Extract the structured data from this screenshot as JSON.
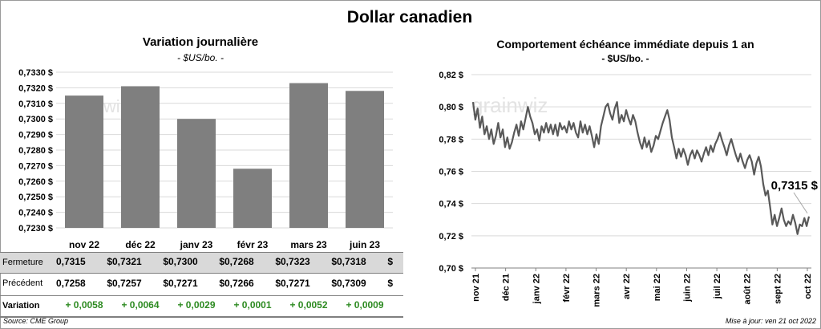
{
  "title": "Dollar canadien",
  "left": {
    "title": "Variation  journalière",
    "unit": "- $US/bo. -"
  },
  "right": {
    "title": "Comportement échéance immédiate depuis 1 an",
    "unit": "- $US/bo. -",
    "annotation": "0,7315 $"
  },
  "watermark": "grainwiz",
  "table": {
    "labels": {
      "fermeture": "Fermeture",
      "precedent": "Précédent",
      "variation": "Variation"
    },
    "fermeture": [
      "0,7315",
      "0,7321",
      "0,7300",
      "0,7268",
      "0,7323",
      "0,7318"
    ],
    "precedent": [
      "0,7258",
      "0,7257",
      "0,7271",
      "0,7266",
      "0,7271",
      "0,7309"
    ],
    "variation": [
      "+ 0,0058",
      "+ 0,0064",
      "+ 0,0029",
      "+ 0,0001",
      "+ 0,0052",
      "+ 0,0009"
    ],
    "currency": "$"
  },
  "footer": {
    "source": "Source: CME Group",
    "updated": "Mise à jour: ven 21 oct 2022"
  },
  "colors": {
    "bar": "#7f7f7f",
    "line": "#595959",
    "green": "#2e8b22",
    "grid": "#d9d9d9"
  },
  "chart_data": [
    {
      "type": "bar",
      "categories": [
        "nov 22",
        "déc 22",
        "janv 23",
        "févr 23",
        "mars 23",
        "juin 23"
      ],
      "values": [
        0.7315,
        0.7321,
        0.73,
        0.7268,
        0.7323,
        0.7318
      ],
      "ylim": [
        0.723,
        0.733
      ],
      "yticks": [
        "0,7230 $",
        "0,7240 $",
        "0,7250 $",
        "0,7260 $",
        "0,7270 $",
        "0,7280 $",
        "0,7290 $",
        "0,7300 $",
        "0,7310 $",
        "0,7320 $",
        "0,7330 $"
      ],
      "grid": true,
      "legend": "none"
    },
    {
      "type": "line",
      "ylim": [
        0.7,
        0.82
      ],
      "yticks": [
        "0,70 $",
        "0,72 $",
        "0,74 $",
        "0,76 $",
        "0,78 $",
        "0,80 $",
        "0,82 $"
      ],
      "xticks": [
        "nov 21",
        "déc 21",
        "janv 22",
        "févr 22",
        "mars 22",
        "avr 22",
        "mai 22",
        "juin 22",
        "juil 22",
        "août 22",
        "sept 22",
        "oct 22"
      ],
      "grid": true,
      "legend": "none",
      "values": [
        0.803,
        0.792,
        0.799,
        0.787,
        0.794,
        0.783,
        0.788,
        0.78,
        0.786,
        0.777,
        0.782,
        0.79,
        0.781,
        0.786,
        0.775,
        0.781,
        0.774,
        0.778,
        0.784,
        0.789,
        0.782,
        0.791,
        0.786,
        0.793,
        0.8,
        0.794,
        0.79,
        0.783,
        0.786,
        0.779,
        0.788,
        0.784,
        0.79,
        0.784,
        0.789,
        0.783,
        0.789,
        0.782,
        0.79,
        0.786,
        0.788,
        0.784,
        0.791,
        0.786,
        0.79,
        0.784,
        0.781,
        0.791,
        0.784,
        0.789,
        0.783,
        0.788,
        0.782,
        0.775,
        0.783,
        0.777,
        0.788,
        0.794,
        0.8,
        0.802,
        0.796,
        0.792,
        0.799,
        0.803,
        0.79,
        0.795,
        0.791,
        0.798,
        0.793,
        0.789,
        0.795,
        0.791,
        0.784,
        0.778,
        0.774,
        0.781,
        0.775,
        0.779,
        0.772,
        0.776,
        0.782,
        0.78,
        0.785,
        0.79,
        0.794,
        0.798,
        0.792,
        0.781,
        0.775,
        0.768,
        0.774,
        0.769,
        0.774,
        0.77,
        0.764,
        0.77,
        0.773,
        0.768,
        0.773,
        0.77,
        0.766,
        0.771,
        0.775,
        0.77,
        0.776,
        0.772,
        0.777,
        0.78,
        0.784,
        0.779,
        0.775,
        0.77,
        0.776,
        0.78,
        0.775,
        0.77,
        0.766,
        0.771,
        0.766,
        0.762,
        0.767,
        0.77,
        0.766,
        0.758,
        0.765,
        0.769,
        0.763,
        0.752,
        0.745,
        0.748,
        0.738,
        0.727,
        0.733,
        0.726,
        0.731,
        0.737,
        0.73,
        0.726,
        0.729,
        0.727,
        0.733,
        0.728,
        0.721,
        0.727,
        0.726,
        0.731,
        0.726,
        0.732
      ]
    }
  ]
}
